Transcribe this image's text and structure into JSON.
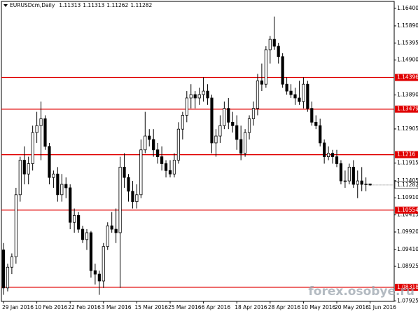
{
  "chart_data": {
    "type": "candlestick",
    "title": "EURUSDcm,Daily",
    "categories": [
      "29 Jan 2016",
      null,
      null,
      null,
      null,
      null,
      null,
      null,
      "10 Feb 2016",
      null,
      null,
      null,
      null,
      null,
      null,
      null,
      "22 Feb 2016",
      null,
      null,
      null,
      null,
      null,
      null,
      null,
      "3 Mar 2016",
      null,
      null,
      null,
      null,
      null,
      null,
      null,
      "15 Mar 2016",
      null,
      null,
      null,
      null,
      null,
      null,
      null,
      "25 Mar 2016",
      null,
      null,
      null,
      null,
      null,
      null,
      null,
      "6 Apr 2016",
      null,
      null,
      null,
      null,
      null,
      null,
      null,
      "18 Apr 2016",
      null,
      null,
      null,
      null,
      null,
      null,
      null,
      "28 Apr 2016",
      null,
      null,
      null,
      null,
      null,
      null,
      null,
      "10 May 2016",
      null,
      null,
      null,
      null,
      null,
      null,
      null,
      "20 May 2016",
      null,
      null,
      null,
      null,
      null,
      null,
      null,
      "1 Jun 2016"
    ],
    "open": [
      1.094,
      1.083,
      1.089,
      1.092,
      1.11,
      1.12,
      1.116,
      1.119,
      1.128,
      1.13,
      1.132,
      1.124,
      1.115,
      1.116,
      1.11,
      1.113,
      1.112,
      1.102,
      1.104,
      1.1,
      1.097,
      1.099,
      1.088,
      1.087,
      1.085,
      1.095,
      1.101,
      1.1,
      1.099,
      1.118,
      1.115,
      1.111,
      1.108,
      1.11,
      1.123,
      1.127,
      1.126,
      1.123,
      1.121,
      1.119,
      1.117,
      1.116,
      1.12,
      1.129,
      1.133,
      1.138,
      1.139,
      1.138,
      1.139,
      1.14,
      1.138,
      1.125,
      1.127,
      1.13,
      1.135,
      1.131,
      1.13,
      1.126,
      1.122,
      1.128,
      1.132,
      1.135,
      1.143,
      1.142,
      1.152,
      1.155,
      1.153,
      1.15,
      1.142,
      1.14,
      1.139,
      1.138,
      1.137,
      1.142,
      1.135,
      1.131,
      1.13,
      1.125,
      1.121,
      1.122,
      1.121,
      1.119,
      1.114,
      1.114,
      1.118,
      1.113,
      1.114,
      1.113,
      1.11313
    ],
    "high": [
      1.096,
      1.09,
      1.093,
      1.112,
      1.121,
      1.124,
      1.121,
      1.13,
      1.134,
      1.137,
      1.133,
      1.125,
      1.117,
      1.118,
      1.116,
      1.115,
      1.113,
      1.106,
      1.105,
      1.101,
      1.1,
      1.0995,
      1.09,
      1.088,
      1.096,
      1.102,
      1.105,
      1.106,
      1.121,
      1.122,
      1.116,
      1.114,
      1.113,
      1.126,
      1.134,
      1.129,
      1.129,
      1.125,
      1.124,
      1.12,
      1.12,
      1.122,
      1.131,
      1.134,
      1.14,
      1.142,
      1.14,
      1.141,
      1.144,
      1.142,
      1.139,
      1.129,
      1.133,
      1.137,
      1.138,
      1.134,
      1.133,
      1.13,
      1.129,
      1.133,
      1.137,
      1.145,
      1.148,
      1.153,
      1.156,
      1.1616,
      1.154,
      1.151,
      1.144,
      1.142,
      1.141,
      1.143,
      1.144,
      1.143,
      1.137,
      1.133,
      1.132,
      1.126,
      1.124,
      1.123,
      1.123,
      1.12,
      1.117,
      1.119,
      1.12,
      1.117,
      1.118,
      1.115,
      1.11313
    ],
    "low": [
      1.081,
      1.082,
      1.087,
      1.09,
      1.108,
      1.113,
      1.113,
      1.117,
      1.125,
      1.12,
      1.123,
      1.113,
      1.112,
      1.108,
      1.108,
      1.109,
      1.1,
      1.099,
      1.099,
      1.096,
      1.094,
      1.086,
      1.084,
      1.081,
      1.083,
      1.094,
      1.099,
      1.096,
      1.083,
      1.112,
      1.108,
      1.106,
      1.106,
      1.109,
      1.122,
      1.124,
      1.121,
      1.119,
      1.117,
      1.115,
      1.115,
      1.115,
      1.119,
      1.126,
      1.131,
      1.135,
      1.135,
      1.136,
      1.137,
      1.136,
      1.122,
      1.121,
      1.125,
      1.129,
      1.129,
      1.128,
      1.123,
      1.12,
      1.121,
      1.126,
      1.13,
      1.133,
      1.14,
      1.141,
      1.148,
      1.152,
      1.148,
      1.141,
      1.139,
      1.138,
      1.136,
      1.136,
      1.135,
      1.134,
      1.13,
      1.129,
      1.124,
      1.119,
      1.12,
      1.119,
      1.118,
      1.113,
      1.112,
      1.113,
      1.112,
      1.109,
      1.111,
      1.111,
      1.11262
    ],
    "close": [
      1.083,
      1.089,
      1.092,
      1.11,
      1.12,
      1.116,
      1.119,
      1.128,
      1.13,
      1.132,
      1.124,
      1.115,
      1.116,
      1.11,
      1.113,
      1.112,
      1.102,
      1.104,
      1.1,
      1.097,
      1.099,
      1.088,
      1.087,
      1.085,
      1.095,
      1.101,
      1.1,
      1.099,
      1.118,
      1.115,
      1.111,
      1.108,
      1.11,
      1.123,
      1.127,
      1.126,
      1.123,
      1.121,
      1.119,
      1.117,
      1.116,
      1.12,
      1.129,
      1.133,
      1.138,
      1.139,
      1.138,
      1.139,
      1.14,
      1.138,
      1.125,
      1.127,
      1.13,
      1.135,
      1.131,
      1.13,
      1.126,
      1.122,
      1.128,
      1.132,
      1.135,
      1.143,
      1.142,
      1.152,
      1.155,
      1.153,
      1.15,
      1.142,
      1.14,
      1.139,
      1.138,
      1.137,
      1.142,
      1.135,
      1.131,
      1.13,
      1.125,
      1.121,
      1.122,
      1.121,
      1.119,
      1.114,
      1.114,
      1.118,
      1.113,
      1.114,
      1.113,
      1.1131,
      1.11282
    ],
    "up_color": "#ffffff",
    "down_color": "#000000",
    "level_color": "#e00000",
    "levels": [
      1.14396,
      1.13479,
      1.1216,
      1.10554,
      1.08318
    ],
    "ylim": [
      1.0791,
      1.1664
    ],
    "yticks": [
      {
        "value": 1.164,
        "label": "1.16400"
      },
      {
        "value": 1.1589,
        "label": "1.15890"
      },
      {
        "value": 1.15395,
        "label": "1.15395"
      },
      {
        "value": 1.149,
        "label": "1.14900"
      },
      {
        "value": 1.1389,
        "label": "1.13890"
      },
      {
        "value": 1.12905,
        "label": "1.12905"
      },
      {
        "value": 1.11915,
        "label": "1.11915"
      },
      {
        "value": 1.11405,
        "label": "1.11405"
      },
      {
        "value": 1.1091,
        "label": "1.10910"
      },
      {
        "value": 1.10415,
        "label": "1.10415"
      },
      {
        "value": 1.0992,
        "label": "1.09920"
      },
      {
        "value": 1.0941,
        "label": "1.09410"
      },
      {
        "value": 1.08925,
        "label": "1.08925"
      },
      {
        "value": 1.07925,
        "label": "1.07925"
      }
    ],
    "watermark": "forex.osobye.ru"
  }
}
